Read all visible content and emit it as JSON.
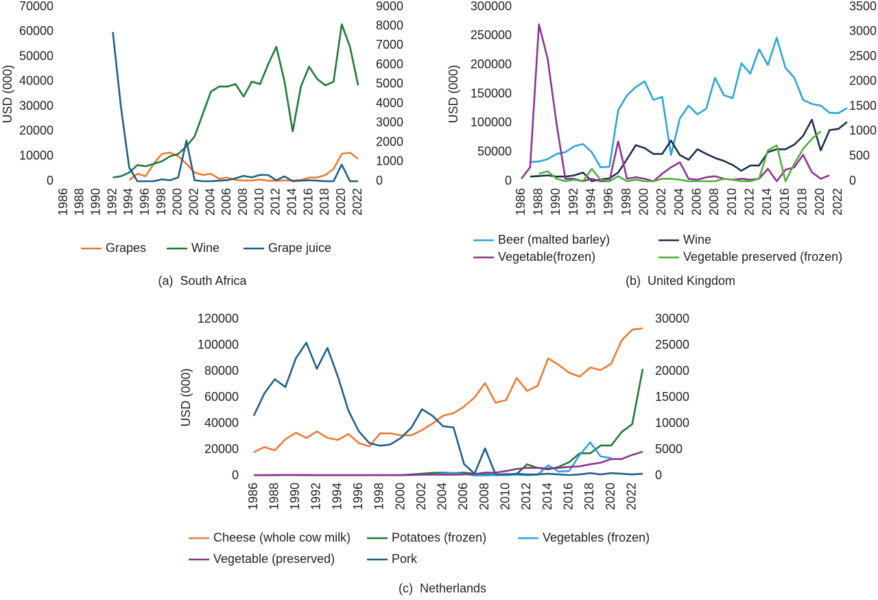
{
  "chart_data": [
    {
      "type": "line",
      "caption": "(a)  South Africa",
      "ylabel": "USD (000)",
      "x": [
        1986,
        1987,
        1988,
        1989,
        1990,
        1991,
        1992,
        1993,
        1994,
        1995,
        1996,
        1997,
        1998,
        1999,
        2000,
        2001,
        2002,
        2003,
        2004,
        2005,
        2006,
        2007,
        2008,
        2009,
        2010,
        2011,
        2012,
        2013,
        2014,
        2015,
        2016,
        2017,
        2018,
        2019,
        2020,
        2021,
        2022,
        2023
      ],
      "xlim": [
        1986,
        2023
      ],
      "xticks": [
        1986,
        1988,
        1990,
        1992,
        1994,
        1996,
        1998,
        2000,
        2002,
        2004,
        2006,
        2008,
        2010,
        2012,
        2014,
        2016,
        2018,
        2020,
        2022
      ],
      "ylim": [
        0,
        70000
      ],
      "yticks": [
        0,
        10000,
        20000,
        30000,
        40000,
        50000,
        60000,
        70000
      ],
      "y2lim": [
        0,
        9000
      ],
      "y2ticks": [
        0,
        1000,
        2000,
        3000,
        4000,
        5000,
        6000,
        7000,
        8000,
        9000
      ],
      "grid": false,
      "series": [
        {
          "name": "Grapes",
          "color": "#ec7a34",
          "axis": "y2",
          "values": [
            null,
            null,
            null,
            null,
            null,
            null,
            null,
            null,
            64,
            386,
            257,
            900,
            1414,
            1479,
            1286,
            900,
            450,
            321,
            386,
            129,
            193,
            64,
            39,
            39,
            90,
            26,
            26,
            39,
            39,
            64,
            193,
            193,
            321,
            643,
            1414,
            1479,
            1157,
            null
          ]
        },
        {
          "name": "Wine",
          "color": "#1e7a34",
          "values": [
            null,
            null,
            null,
            null,
            null,
            null,
            1500,
            2000,
            3500,
            6500,
            6000,
            7000,
            8000,
            10000,
            11000,
            14000,
            18000,
            27000,
            36000,
            38000,
            38000,
            39000,
            34000,
            40000,
            39000,
            47000,
            54000,
            40000,
            20000,
            38000,
            46000,
            41000,
            38500,
            40000,
            63000,
            54000,
            38500,
            null
          ]
        },
        {
          "name": "Grape juice",
          "color": "#1f5f86",
          "axis": "y2",
          "values": [
            null,
            null,
            null,
            null,
            null,
            null,
            7700,
            3800,
            700,
            0,
            0,
            0,
            100,
            50,
            200,
            2100,
            50,
            0,
            0,
            30,
            50,
            150,
            280,
            200,
            330,
            320,
            50,
            250,
            0,
            30,
            50,
            30,
            0,
            0,
            860,
            0,
            0,
            null
          ]
        }
      ]
    },
    {
      "type": "line",
      "caption": "(b)  United Kingdom",
      "ylabel": "USD (000)",
      "x": [
        1986,
        1987,
        1988,
        1989,
        1990,
        1991,
        1992,
        1993,
        1994,
        1995,
        1996,
        1997,
        1998,
        1999,
        2000,
        2001,
        2002,
        2003,
        2004,
        2005,
        2006,
        2007,
        2008,
        2009,
        2010,
        2011,
        2012,
        2013,
        2014,
        2015,
        2016,
        2017,
        2018,
        2019,
        2020,
        2021,
        2022,
        2023
      ],
      "xlim": [
        1986,
        2023
      ],
      "xticks": [
        1986,
        1988,
        1990,
        1992,
        1994,
        1996,
        1998,
        2000,
        2002,
        2004,
        2006,
        2008,
        2010,
        2012,
        2014,
        2016,
        2018,
        2020,
        2022
      ],
      "ylim": [
        0,
        300000
      ],
      "yticks": [
        0,
        50000,
        100000,
        150000,
        200000,
        250000,
        300000
      ],
      "y2lim": [
        0,
        3500
      ],
      "y2ticks": [
        0,
        500,
        1000,
        1500,
        2000,
        2500,
        3000,
        3500
      ],
      "grid": false,
      "series": [
        {
          "name": "Beer (malted barley)",
          "color": "#29a4dc",
          "values": [
            null,
            33000,
            34000,
            38000,
            47000,
            50000,
            60000,
            64000,
            50000,
            24000,
            25000,
            122000,
            148000,
            162000,
            172000,
            140000,
            145000,
            45000,
            108000,
            130000,
            115000,
            125000,
            178000,
            148000,
            143000,
            203000,
            185000,
            227000,
            200000,
            247000,
            195000,
            178000,
            140000,
            133000,
            130000,
            118000,
            117000,
            126000
          ]
        },
        {
          "name": "Wine",
          "color": "#1b2f4b",
          "values": [
            null,
            8000,
            9000,
            10000,
            8000,
            8000,
            10000,
            15000,
            0,
            3000,
            5000,
            15000,
            38000,
            62000,
            57000,
            47000,
            47000,
            70000,
            45000,
            37000,
            55000,
            47000,
            40000,
            35000,
            28000,
            18000,
            27000,
            27000,
            50000,
            55000,
            55000,
            63000,
            78000,
            106000,
            53000,
            88000,
            90000,
            102000
          ]
        },
        {
          "name": "Vegetable(frozen)",
          "color": "#8e3392",
          "axis": "y2",
          "values": [
            50,
            280,
            3150,
            2450,
            1150,
            50,
            50,
            0,
            50,
            0,
            0,
            800,
            50,
            80,
            50,
            0,
            150,
            280,
            380,
            50,
            30,
            80,
            100,
            50,
            30,
            50,
            30,
            50,
            250,
            0,
            230,
            280,
            530,
            180,
            50,
            120,
            null,
            null
          ]
        },
        {
          "name": "Vegetable preserved (frozen)",
          "color": "#4eae3c",
          "axis": "y2",
          "values": [
            null,
            null,
            150,
            200,
            50,
            0,
            30,
            0,
            250,
            30,
            0,
            100,
            0,
            30,
            0,
            0,
            50,
            50,
            30,
            0,
            0,
            0,
            0,
            50,
            30,
            0,
            0,
            50,
            620,
            720,
            0,
            350,
            650,
            850,
            1000,
            null,
            null,
            null
          ]
        }
      ]
    },
    {
      "type": "line",
      "caption": "(c)  Netherlands",
      "ylabel": "USD (000)",
      "x": [
        1986,
        1987,
        1988,
        1989,
        1990,
        1991,
        1992,
        1993,
        1994,
        1995,
        1996,
        1997,
        1998,
        1999,
        2000,
        2001,
        2002,
        2003,
        2004,
        2005,
        2006,
        2007,
        2008,
        2009,
        2010,
        2011,
        2012,
        2013,
        2014,
        2015,
        2016,
        2017,
        2018,
        2019,
        2020,
        2021,
        2022,
        2023
      ],
      "xlim": [
        1986,
        2023
      ],
      "xticks": [
        1986,
        1988,
        1990,
        1992,
        1994,
        1996,
        1998,
        2000,
        2002,
        2004,
        2006,
        2008,
        2010,
        2012,
        2014,
        2016,
        2018,
        2020,
        2022
      ],
      "ylim": [
        0,
        120000
      ],
      "yticks": [
        0,
        20000,
        40000,
        60000,
        80000,
        100000,
        120000
      ],
      "y2lim": [
        0,
        30000
      ],
      "y2ticks": [
        0,
        5000,
        10000,
        15000,
        20000,
        25000,
        30000
      ],
      "grid": false,
      "series": [
        {
          "name": "Cheese (whole cow milk)",
          "color": "#ec7a34",
          "values": [
            18000,
            22000,
            19500,
            28000,
            33000,
            29000,
            34000,
            29000,
            27500,
            32000,
            25000,
            22500,
            32500,
            32500,
            31000,
            31000,
            35000,
            40000,
            46000,
            48000,
            53000,
            60000,
            71000,
            56000,
            58000,
            75000,
            65000,
            69000,
            90000,
            85000,
            79000,
            76000,
            83000,
            81000,
            86000,
            104000,
            112000,
            113000
          ]
        },
        {
          "name": "Potatoes (frozen)",
          "color": "#1e7a34",
          "axis": "y2",
          "values": [
            100,
            100,
            100,
            150,
            150,
            150,
            100,
            100,
            100,
            100,
            100,
            100,
            150,
            100,
            150,
            250,
            400,
            550,
            600,
            500,
            600,
            400,
            250,
            200,
            300,
            300,
            2200,
            1500,
            1200,
            1700,
            2600,
            4300,
            4300,
            5800,
            5800,
            8400,
            9900,
            20500
          ]
        },
        {
          "name": "Vegetables (frozen)",
          "color": "#29a4dc",
          "axis": "y2",
          "values": [
            null,
            null,
            null,
            null,
            null,
            null,
            null,
            null,
            null,
            null,
            null,
            null,
            null,
            null,
            null,
            null,
            null,
            200,
            450,
            450,
            350,
            50,
            50,
            100,
            100,
            200,
            100,
            200,
            2000,
            800,
            900,
            4000,
            6400,
            3700,
            3400,
            null,
            null,
            null
          ]
        },
        {
          "name": "Vegetable (preserved)",
          "color": "#8e3392",
          "axis": "y2",
          "values": [
            100,
            100,
            150,
            150,
            150,
            100,
            100,
            100,
            100,
            100,
            100,
            100,
            100,
            100,
            100,
            150,
            200,
            200,
            200,
            200,
            250,
            300,
            600,
            600,
            900,
            1300,
            1500,
            1500,
            1400,
            1500,
            1700,
            1800,
            2200,
            2500,
            3200,
            3200,
            4000,
            4600
          ]
        },
        {
          "name": "Pork",
          "color": "#1f5f86",
          "values": [
            46000,
            63000,
            74000,
            68000,
            90000,
            102000,
            82000,
            98000,
            76000,
            50000,
            34000,
            25000,
            23000,
            24000,
            29000,
            37000,
            51000,
            46000,
            38000,
            37000,
            9000,
            1500,
            21000,
            1000,
            1000,
            1500,
            1000,
            1000,
            1500,
            1000,
            500,
            1000,
            2000,
            1000,
            2000,
            1500,
            1000,
            1500
          ]
        }
      ]
    }
  ]
}
